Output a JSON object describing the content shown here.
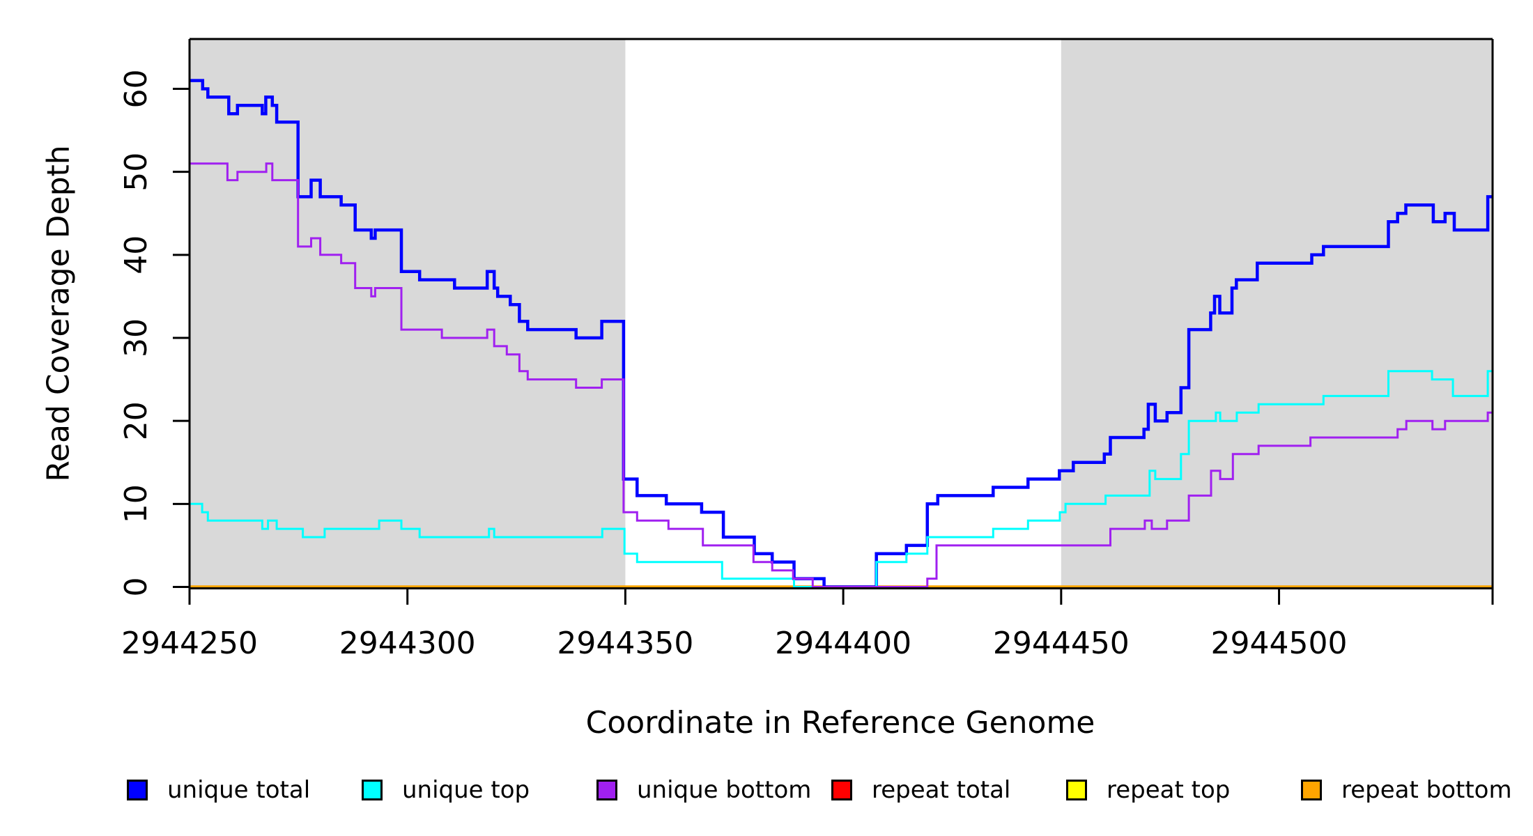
{
  "chart_data": {
    "type": "line",
    "step": true,
    "title": "",
    "xlabel": "Coordinate in Reference Genome",
    "ylabel": "Read Coverage Depth",
    "xlim": [
      2944250,
      2944549
    ],
    "ylim": [
      0,
      66
    ],
    "x_ticks": [
      2944250,
      2944300,
      2944350,
      2944400,
      2944450,
      2944500
    ],
    "y_ticks": [
      0,
      10,
      20,
      30,
      40,
      50,
      60
    ],
    "grid": false,
    "legend_position": "bottom",
    "background_color": "#ffffff",
    "shaded_regions": [
      {
        "x0": 2944250,
        "x1": 2944350,
        "color": "#D9D9D9",
        "name": "left-unique-region"
      },
      {
        "x0": 2944450,
        "x1": 2944549,
        "color": "#D9D9D9",
        "name": "right-unique-region"
      }
    ],
    "series": [
      {
        "name": "repeat total",
        "color": "#FF0000",
        "width": 3,
        "points": [
          [
            2944250,
            0
          ]
        ]
      },
      {
        "name": "repeat top",
        "color": "#FFFF00",
        "width": 3,
        "points": [
          [
            2944250,
            0
          ]
        ]
      },
      {
        "name": "repeat bottom",
        "color": "#FFA500",
        "width": 4.5,
        "points": [
          [
            2944250,
            0
          ]
        ]
      },
      {
        "name": "unique total",
        "color": "#0000FF",
        "width": 4.5,
        "points": [
          [
            2944250,
            61
          ],
          [
            2944253,
            60
          ],
          [
            2944254.2,
            59
          ],
          [
            2944259,
            57
          ],
          [
            2944261,
            58
          ],
          [
            2944266.7,
            57
          ],
          [
            2944267.5,
            59
          ],
          [
            2944269,
            58
          ],
          [
            2944270,
            56
          ],
          [
            2944274.9,
            47
          ],
          [
            2944277.9,
            49
          ],
          [
            2944280,
            47
          ],
          [
            2944284.8,
            46
          ],
          [
            2944288,
            43
          ],
          [
            2944291.7,
            42
          ],
          [
            2944292.6,
            43
          ],
          [
            2944298.6,
            38
          ],
          [
            2944302.8,
            37
          ],
          [
            2944310.8,
            36
          ],
          [
            2944318.3,
            38
          ],
          [
            2944319.9,
            36
          ],
          [
            2944320.7,
            35
          ],
          [
            2944323.6,
            34
          ],
          [
            2944325.7,
            32
          ],
          [
            2944327.6,
            31
          ],
          [
            2944338.7,
            30
          ],
          [
            2944344.6,
            32
          ],
          [
            2944349.6,
            13
          ],
          [
            2944352.7,
            11
          ],
          [
            2944359.4,
            10
          ],
          [
            2944367.5,
            9
          ],
          [
            2944372.5,
            6
          ],
          [
            2944379.6,
            4
          ],
          [
            2944383.7,
            3
          ],
          [
            2944388.7,
            1
          ],
          [
            2944395.6,
            0
          ],
          [
            2944407.6,
            4
          ],
          [
            2944414.5,
            5
          ],
          [
            2944419.3,
            10
          ],
          [
            2944421.7,
            11
          ],
          [
            2944434.4,
            12
          ],
          [
            2944442.4,
            13
          ],
          [
            2944449.6,
            14
          ],
          [
            2944452.8,
            15
          ],
          [
            2944459.9,
            16
          ],
          [
            2944461.3,
            18
          ],
          [
            2944469,
            19
          ],
          [
            2944470,
            22
          ],
          [
            2944471.6,
            20
          ],
          [
            2944474.3,
            21
          ],
          [
            2944477.5,
            24
          ],
          [
            2944479.3,
            31
          ],
          [
            2944484.3,
            33
          ],
          [
            2944485.2,
            35
          ],
          [
            2944486.4,
            33
          ],
          [
            2944489.2,
            36
          ],
          [
            2944490.2,
            37
          ],
          [
            2944495,
            39
          ],
          [
            2944507.5,
            40
          ],
          [
            2944510.2,
            41
          ],
          [
            2944525.1,
            44
          ],
          [
            2944527.2,
            45
          ],
          [
            2944529.1,
            46
          ],
          [
            2944535.4,
            44
          ],
          [
            2944538.1,
            45
          ],
          [
            2944540.2,
            43
          ],
          [
            2944547.9,
            47
          ]
        ]
      },
      {
        "name": "unique top",
        "color": "#00FFFF",
        "width": 3,
        "points": [
          [
            2944250,
            10
          ],
          [
            2944252.9,
            9
          ],
          [
            2944254.2,
            8
          ],
          [
            2944266.7,
            7
          ],
          [
            2944268,
            8
          ],
          [
            2944270,
            7
          ],
          [
            2944276,
            6
          ],
          [
            2944281,
            7
          ],
          [
            2944293.5,
            8
          ],
          [
            2944298.6,
            7
          ],
          [
            2944302.8,
            6
          ],
          [
            2944318.7,
            7
          ],
          [
            2944319.9,
            6
          ],
          [
            2944344.7,
            7
          ],
          [
            2944349.8,
            4
          ],
          [
            2944352.7,
            3
          ],
          [
            2944372.2,
            1
          ],
          [
            2944388.7,
            0
          ],
          [
            2944407.6,
            3
          ],
          [
            2944414.5,
            4
          ],
          [
            2944419.3,
            6
          ],
          [
            2944434.4,
            7
          ],
          [
            2944442.4,
            8
          ],
          [
            2944449.7,
            9
          ],
          [
            2944451,
            10
          ],
          [
            2944460.2,
            11
          ],
          [
            2944470.3,
            14
          ],
          [
            2944471.6,
            13
          ],
          [
            2944477.5,
            16
          ],
          [
            2944479.3,
            20
          ],
          [
            2944485.5,
            21
          ],
          [
            2944486.5,
            20
          ],
          [
            2944490.3,
            21
          ],
          [
            2944495.3,
            22
          ],
          [
            2944510.2,
            23
          ],
          [
            2944525.1,
            26
          ],
          [
            2944535.1,
            25
          ],
          [
            2944539.9,
            23
          ],
          [
            2944547.9,
            26
          ]
        ]
      },
      {
        "name": "unique bottom",
        "color": "#A020F0",
        "width": 3,
        "points": [
          [
            2944250,
            51
          ],
          [
            2944258.7,
            49
          ],
          [
            2944261,
            50
          ],
          [
            2944267.6,
            51
          ],
          [
            2944269,
            49
          ],
          [
            2944274.9,
            41
          ],
          [
            2944277.9,
            42
          ],
          [
            2944280,
            40
          ],
          [
            2944284.8,
            39
          ],
          [
            2944288,
            36
          ],
          [
            2944291.7,
            35
          ],
          [
            2944292.6,
            36
          ],
          [
            2944298.6,
            31
          ],
          [
            2944307.9,
            30
          ],
          [
            2944318.3,
            31
          ],
          [
            2944319.9,
            29
          ],
          [
            2944322.8,
            28
          ],
          [
            2944325.7,
            26
          ],
          [
            2944327.6,
            25
          ],
          [
            2944338.7,
            24
          ],
          [
            2944344.6,
            25
          ],
          [
            2944349.6,
            9
          ],
          [
            2944352.7,
            8
          ],
          [
            2944359.9,
            7
          ],
          [
            2944367.8,
            5
          ],
          [
            2944379.4,
            3
          ],
          [
            2944383.7,
            2
          ],
          [
            2944388.5,
            1
          ],
          [
            2944393,
            0
          ],
          [
            2944419.3,
            1
          ],
          [
            2944421.4,
            5
          ],
          [
            2944461.3,
            7
          ],
          [
            2944469.2,
            8
          ],
          [
            2944470.8,
            7
          ],
          [
            2944474.3,
            8
          ],
          [
            2944479.3,
            11
          ],
          [
            2944484.4,
            14
          ],
          [
            2944486.5,
            13
          ],
          [
            2944489.4,
            16
          ],
          [
            2944495.3,
            17
          ],
          [
            2944507.2,
            18
          ],
          [
            2944527.2,
            19
          ],
          [
            2944529.2,
            20
          ],
          [
            2944535.2,
            19
          ],
          [
            2944538.1,
            20
          ],
          [
            2944547.9,
            21
          ]
        ]
      }
    ],
    "legend": {
      "items": [
        {
          "label": "unique total",
          "color": "#0000FF"
        },
        {
          "label": "unique top",
          "color": "#00FFFF"
        },
        {
          "label": "unique bottom",
          "color": "#A020F0"
        },
        {
          "label": "repeat total",
          "color": "#FF0000"
        },
        {
          "label": "repeat top",
          "color": "#FFFF00"
        },
        {
          "label": "repeat bottom",
          "color": "#FFA500"
        }
      ]
    }
  }
}
